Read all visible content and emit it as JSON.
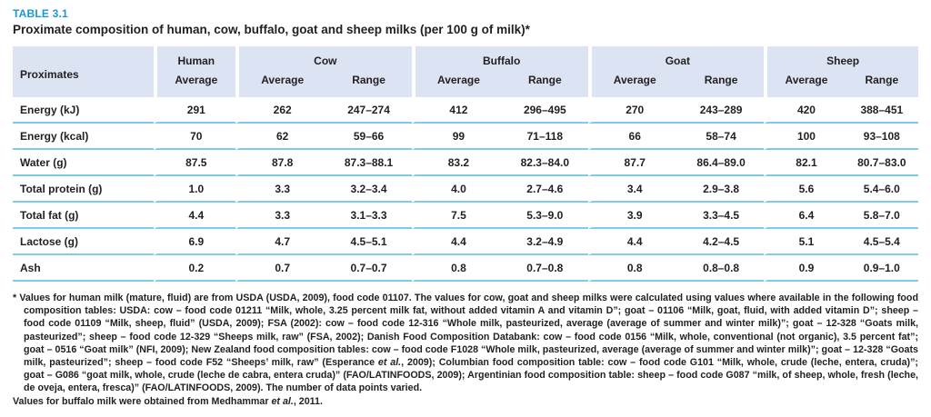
{
  "colors": {
    "accent": "#1899d4",
    "header_bg": "#dce4f4",
    "divider": "#7ecbea",
    "text": "#231f20"
  },
  "title": {
    "label": "TABLE 3.1",
    "caption": "Proximate composition of human, cow, buffalo, goat and sheep milks (per 100 g of milk)*"
  },
  "table": {
    "row_header": "Proximates",
    "groups": [
      {
        "name": "Human",
        "cols": [
          "Average"
        ]
      },
      {
        "name": "Cow",
        "cols": [
          "Average",
          "Range"
        ]
      },
      {
        "name": "Buffalo",
        "cols": [
          "Average",
          "Range"
        ]
      },
      {
        "name": "Goat",
        "cols": [
          "Average",
          "Range"
        ]
      },
      {
        "name": "Sheep",
        "cols": [
          "Average",
          "Range"
        ]
      }
    ],
    "rows": [
      {
        "label": "Energy (kJ)",
        "values": [
          "291",
          "262",
          "247–274",
          "412",
          "296–495",
          "270",
          "243–289",
          "420",
          "388–451"
        ]
      },
      {
        "label": "Energy (kcal)",
        "values": [
          "70",
          "62",
          "59–66",
          "99",
          "71–118",
          "66",
          "58–74",
          "100",
          "93–108"
        ]
      },
      {
        "label": "Water (g)",
        "values": [
          "87.5",
          "87.8",
          "87.3–88.1",
          "83.2",
          "82.3–84.0",
          "87.7",
          "86.4–89.0",
          "82.1",
          "80.7–83.0"
        ]
      },
      {
        "label": "Total protein (g)",
        "values": [
          "1.0",
          "3.3",
          "3.2–3.4",
          "4.0",
          "2.7–4.6",
          "3.4",
          "2.9–3.8",
          "5.6",
          "5.4–6.0"
        ]
      },
      {
        "label": "Total fat (g)",
        "values": [
          "4.4",
          "3.3",
          "3.1–3.3",
          "7.5",
          "5.3–9.0",
          "3.9",
          "3.3–4.5",
          "6.4",
          "5.8–7.0"
        ]
      },
      {
        "label": "Lactose (g)",
        "values": [
          "6.9",
          "4.7",
          "4.5–5.1",
          "4.4",
          "3.2–4.9",
          "4.4",
          "4.2–4.5",
          "5.1",
          "4.5–5.4"
        ]
      },
      {
        "label": "Ash",
        "values": [
          "0.2",
          "0.7",
          "0.7–0.7",
          "0.8",
          "0.7–0.8",
          "0.8",
          "0.8–0.8",
          "0.9",
          "0.9–1.0"
        ]
      }
    ]
  },
  "footnote": {
    "para1": [
      {
        "text": "* Values for human milk (mature, fluid) are from USDA (USDA, 2009), food code 01107. The values for cow, goat and sheep milks were calculated using values where available in the following food composition tables: USDA: cow – food code 01211 “Milk, whole, 3.25 percent milk fat, without added vitamin A and vitamin D”; goat – 01106 “Milk, goat, fluid, with added vitamin D”; sheep – food code 01109 “Milk, sheep, fluid” (USDA, 2009); FSA (2002): cow – food code 12-316 “Whole milk, pasteurized, average (average of summer and winter milk)”; goat – 12-328 “Goats milk, pasteurized”; sheep – food code 12-329 “Sheeps milk, raw” (FSA, 2002); Danish Food Composition Databank: cow – food code 0156 “Milk, whole, conventional (not organic), 3.5 percent fat”; goat – 0516 “Goat milk” (NFI, 2009); New Zealand food composition tables: cow – food code F1028 “Whole milk, pasteurized, average (average of summer and winter milk)”; goat – 12-328 “Goats milk, pasteurized”; sheep – food code F52 “Sheeps’ milk, raw” (Esperance ",
        "italic": false
      },
      {
        "text": "et al.",
        "italic": true
      },
      {
        "text": ", 2009); Columbian food composition table: cow – food code G101 “Milk, whole, crude (leche, entera, cruda)”; goat – G086 “goat milk, whole, crude (leche de cabra, entera cruda)” (FAO/LATINFOODS, 2009); Argentinian food composition table: sheep – food code G087 “milk, of sheep, whole, fresh (leche, de oveja, entera, fresca)” (FAO/LATINFOODS, 2009). The number of data points varied.",
        "italic": false
      }
    ],
    "para2": [
      {
        "text": "Values for buffalo milk were obtained from Medhammar ",
        "italic": false
      },
      {
        "text": "et al.",
        "italic": true
      },
      {
        "text": ", 2011.",
        "italic": false
      }
    ]
  }
}
